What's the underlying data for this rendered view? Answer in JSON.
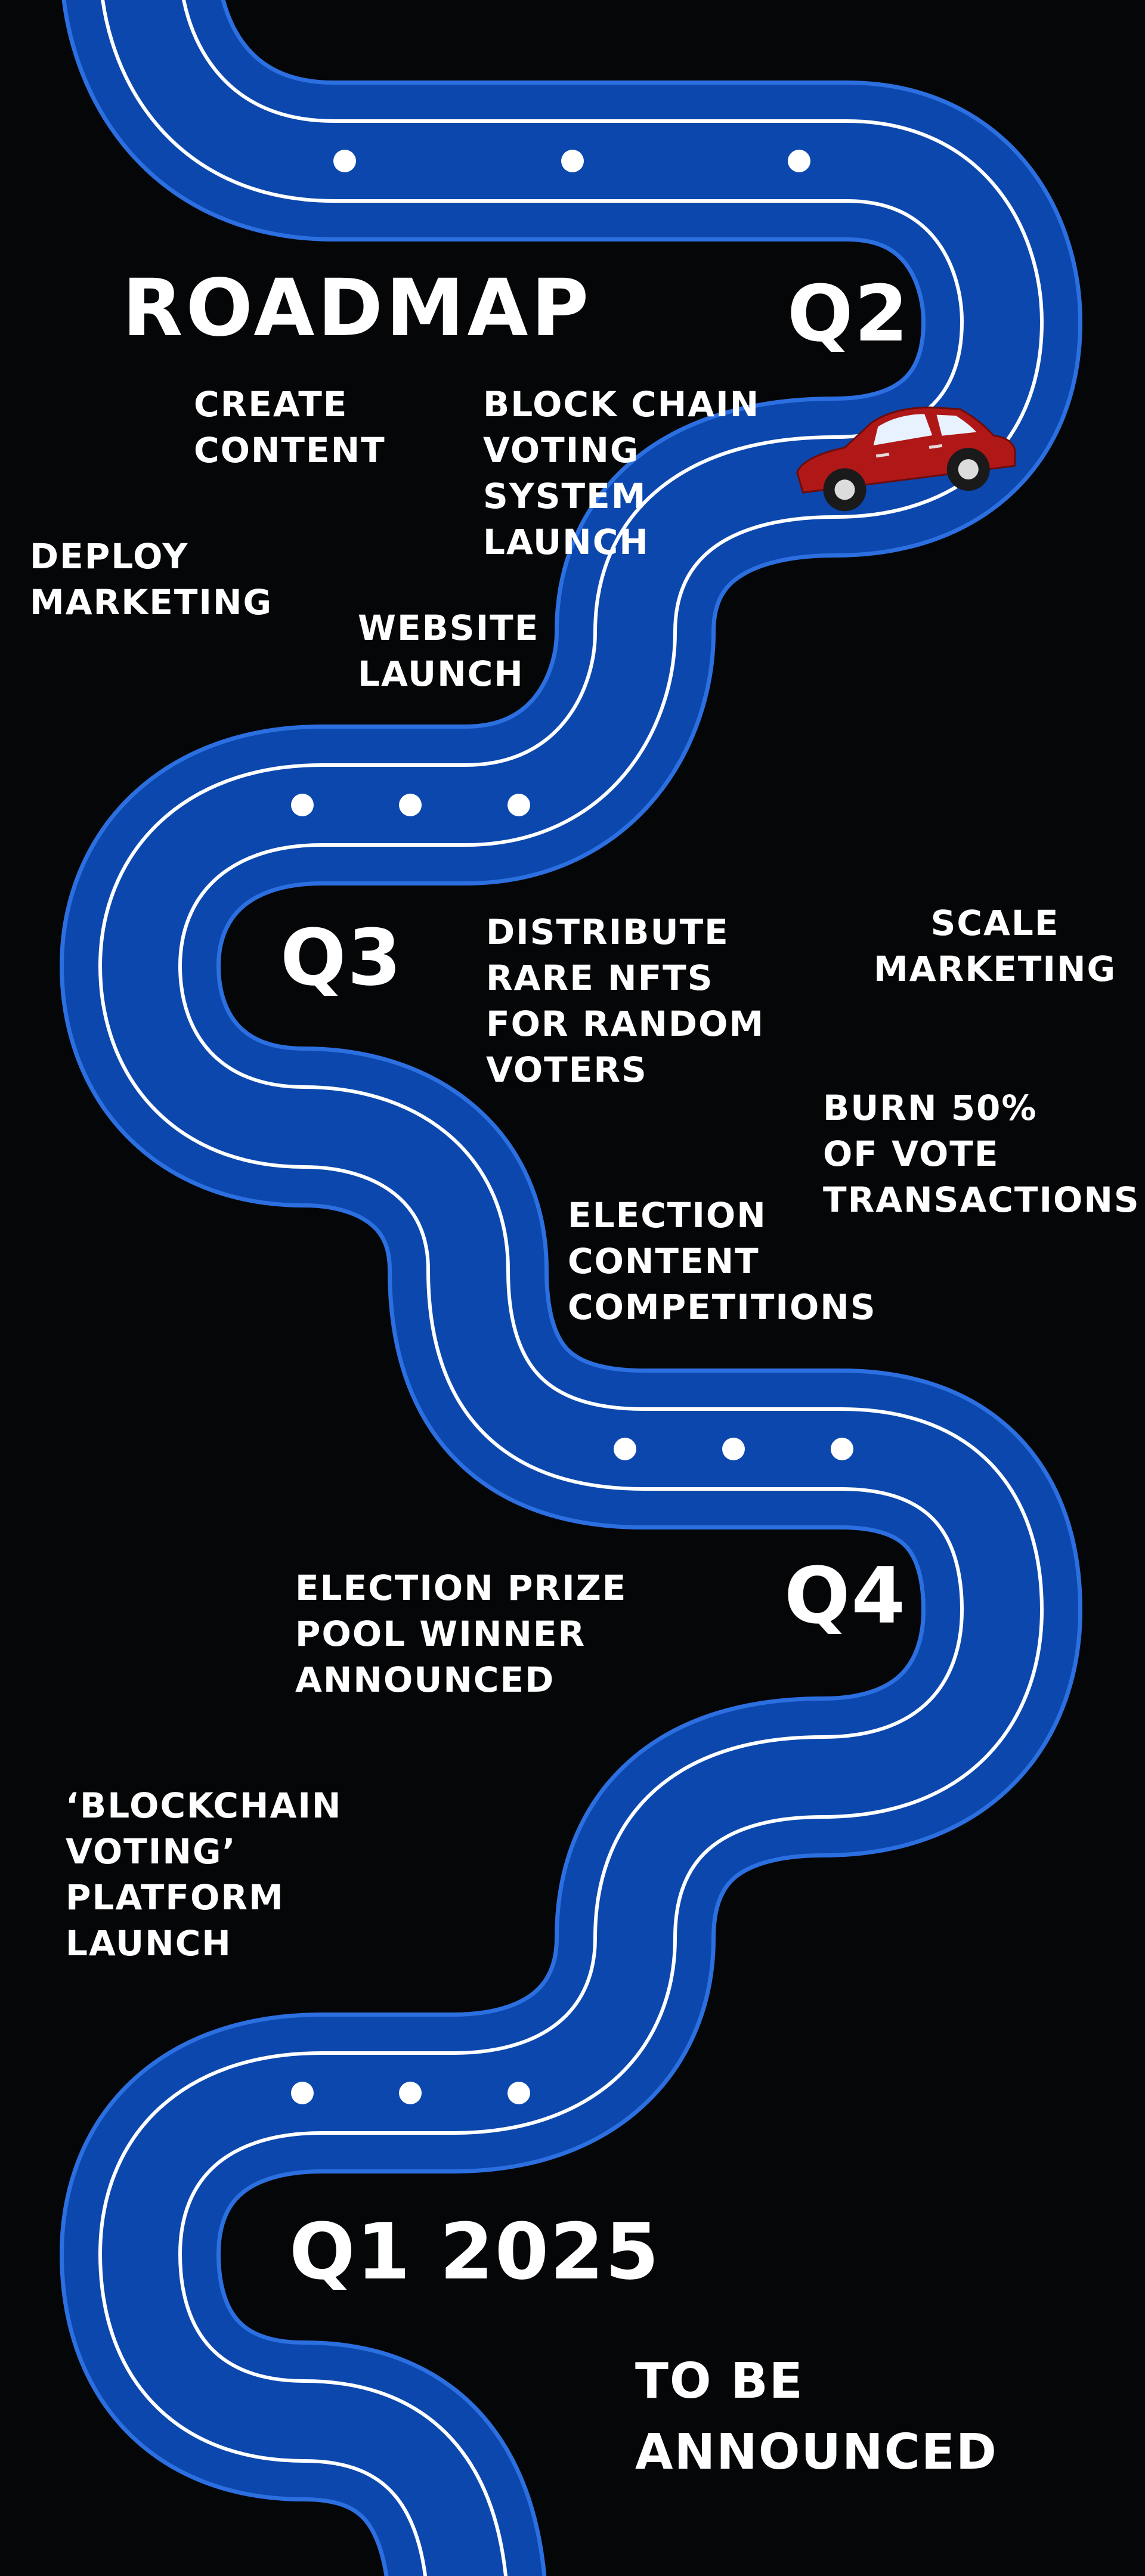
{
  "title": "ROADMAP",
  "quarters": {
    "q2": "Q2",
    "q3": "Q3",
    "q4": "Q4",
    "q1_2025": "Q1 2025"
  },
  "items": {
    "create_content": "CREATE\nCONTENT",
    "blockchain_voting_system": "BLOCK CHAIN\nVOTING\nSYSTEM\nLAUNCH",
    "deploy_marketing": "DEPLOY\nMARKETING",
    "website_launch": "WEBSITE\nLAUNCH",
    "distribute_nfts": "DISTRIBUTE\nRARE NFTS\nFOR RANDOM\nVOTERS",
    "scale_marketing": "SCALE\nMARKETING",
    "burn_vote": "BURN 50%\nOF VOTE\nTRANSACTIONS",
    "election_content": "ELECTION\nCONTENT\nCOMPETITIONS",
    "election_prize": "ELECTION PRIZE\nPOOL WINNER\nANNOUNCED",
    "blockchain_platform": "‘BLOCKCHAIN\nVOTING’\nPLATFORM\nLAUNCH",
    "to_be_announced": "TO BE\nANNOUNCED"
  },
  "colors": {
    "background": "#050608",
    "road": "#0b47ad",
    "road_edge": "#2c6fe0",
    "lane": "#ffffff",
    "car_body": "#b01818",
    "car_window": "#e8f2ff",
    "wheel": "#1a1a1a"
  }
}
